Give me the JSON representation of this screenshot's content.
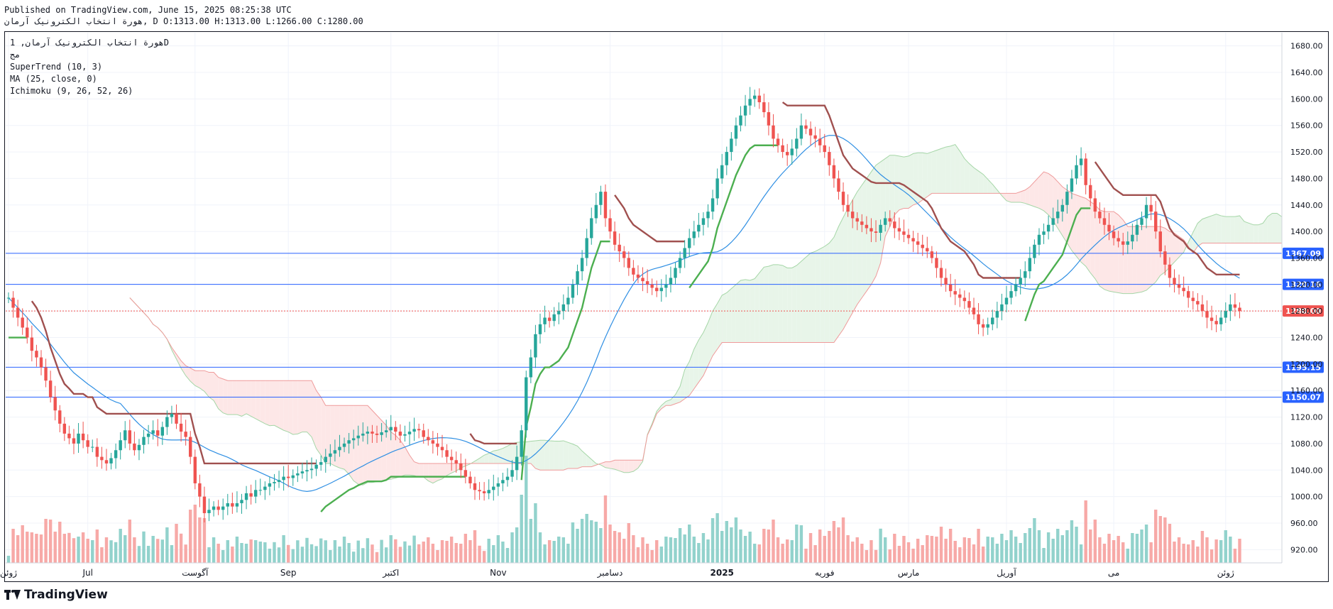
{
  "header": {
    "published": "Published on TradingView.com, June 15, 2025 08:25:38 UTC",
    "ohlc": "هورة انتخاب الکترونیک آرمان, D O:1313.00 H:1313.00 L:1266.00 C:1280.00"
  },
  "legend": {
    "symbol": "هورة انتخاب الکترونیک آرمان, 1D",
    "session": "مج",
    "indicators": [
      "SuperTrend (10, 3)",
      "MA (25, close, 0)",
      "Ichimoku (9, 26, 52, 26)"
    ]
  },
  "footer": {
    "brand": "TradingView"
  },
  "colors": {
    "up": "#26a69a",
    "down": "#ef5350",
    "supertrend_up": "#4caf50",
    "supertrend_down": "#a0504f",
    "ma": "#2f8fe3",
    "hline": "#2962ff",
    "last_price": "#ef5350",
    "cloud_bull": "#e8f5e9",
    "cloud_bear": "#fde7e7"
  },
  "chart_data": {
    "type": "candlestick",
    "ylim": [
      900,
      1700
    ],
    "y_ticks": [
      920,
      960,
      1000,
      1040,
      1080,
      1120,
      1160,
      1200,
      1240,
      1280,
      1320,
      1360,
      1400,
      1440,
      1480,
      1520,
      1560,
      1600,
      1640,
      1680
    ],
    "x_ticks": [
      {
        "label": "ژوئن",
        "i": 0
      },
      {
        "label": "Jul",
        "i": 17
      },
      {
        "label": "آگوست",
        "i": 40
      },
      {
        "label": "Sep",
        "i": 60
      },
      {
        "label": "اکتبر",
        "i": 82
      },
      {
        "label": "Nov",
        "i": 105
      },
      {
        "label": "دسامبر",
        "i": 129
      },
      {
        "label": "2025",
        "i": 153
      },
      {
        "label": "فوریه",
        "i": 175
      },
      {
        "label": "مارس",
        "i": 193
      },
      {
        "label": "آوریل",
        "i": 214
      },
      {
        "label": "می",
        "i": 237
      },
      {
        "label": "ژوئن",
        "i": 261
      }
    ],
    "horizontal_lines": [
      {
        "value": 1367.09,
        "label": "1367.09"
      },
      {
        "value": 1320.16,
        "label": "1320.16"
      },
      {
        "value": 1195.15,
        "label": "1195.15"
      },
      {
        "value": 1150.07,
        "label": "1150.07"
      }
    ],
    "last_price": {
      "value": 1280.0,
      "label": "1280.00"
    },
    "close": [
      1300,
      1285,
      1270,
      1255,
      1240,
      1220,
      1210,
      1195,
      1175,
      1150,
      1130,
      1110,
      1095,
      1088,
      1080,
      1095,
      1085,
      1075,
      1075,
      1060,
      1055,
      1050,
      1058,
      1070,
      1085,
      1100,
      1080,
      1070,
      1078,
      1090,
      1095,
      1100,
      1092,
      1105,
      1120,
      1125,
      1110,
      1098,
      1090,
      1060,
      1020,
      1000,
      975,
      980,
      985,
      980,
      985,
      990,
      985,
      990,
      995,
      1005,
      1000,
      1010,
      1010,
      1015,
      1020,
      1022,
      1025,
      1030,
      1028,
      1032,
      1035,
      1038,
      1040,
      1042,
      1048,
      1052,
      1060,
      1065,
      1070,
      1075,
      1080,
      1085,
      1088,
      1092,
      1095,
      1098,
      1095,
      1093,
      1097,
      1100,
      1105,
      1098,
      1092,
      1094,
      1098,
      1102,
      1100,
      1090,
      1085,
      1080,
      1075,
      1070,
      1060,
      1055,
      1050,
      1040,
      1030,
      1020,
      1010,
      1008,
      1005,
      1010,
      1015,
      1020,
      1025,
      1030,
      1040,
      1060,
      1100,
      1180,
      1210,
      1245,
      1260,
      1270,
      1265,
      1275,
      1280,
      1290,
      1300,
      1320,
      1340,
      1360,
      1390,
      1420,
      1440,
      1460,
      1420,
      1400,
      1380,
      1370,
      1360,
      1345,
      1335,
      1330,
      1325,
      1320,
      1315,
      1310,
      1315,
      1320,
      1330,
      1345,
      1360,
      1375,
      1390,
      1400,
      1410,
      1420,
      1430,
      1450,
      1480,
      1500,
      1520,
      1540,
      1560,
      1575,
      1590,
      1600,
      1605,
      1595,
      1580,
      1560,
      1540,
      1530,
      1520,
      1515,
      1525,
      1540,
      1560,
      1555,
      1545,
      1540,
      1530,
      1520,
      1500,
      1480,
      1460,
      1440,
      1430,
      1420,
      1415,
      1410,
      1405,
      1400,
      1398,
      1410,
      1420,
      1415,
      1405,
      1400,
      1395,
      1390,
      1385,
      1380,
      1375,
      1370,
      1360,
      1345,
      1330,
      1320,
      1310,
      1305,
      1300,
      1295,
      1285,
      1275,
      1260,
      1255,
      1260,
      1270,
      1280,
      1290,
      1300,
      1310,
      1320,
      1330,
      1340,
      1360,
      1380,
      1395,
      1400,
      1410,
      1420,
      1430,
      1440,
      1460,
      1480,
      1500,
      1510,
      1470,
      1450,
      1430,
      1420,
      1410,
      1400,
      1390,
      1385,
      1380,
      1385,
      1395,
      1410,
      1420,
      1440,
      1430,
      1400,
      1370,
      1350,
      1330,
      1320,
      1315,
      1310,
      1300,
      1295,
      1290,
      1280,
      1270,
      1265,
      1260,
      1270,
      1280,
      1290,
      1285,
      1280
    ]
  }
}
